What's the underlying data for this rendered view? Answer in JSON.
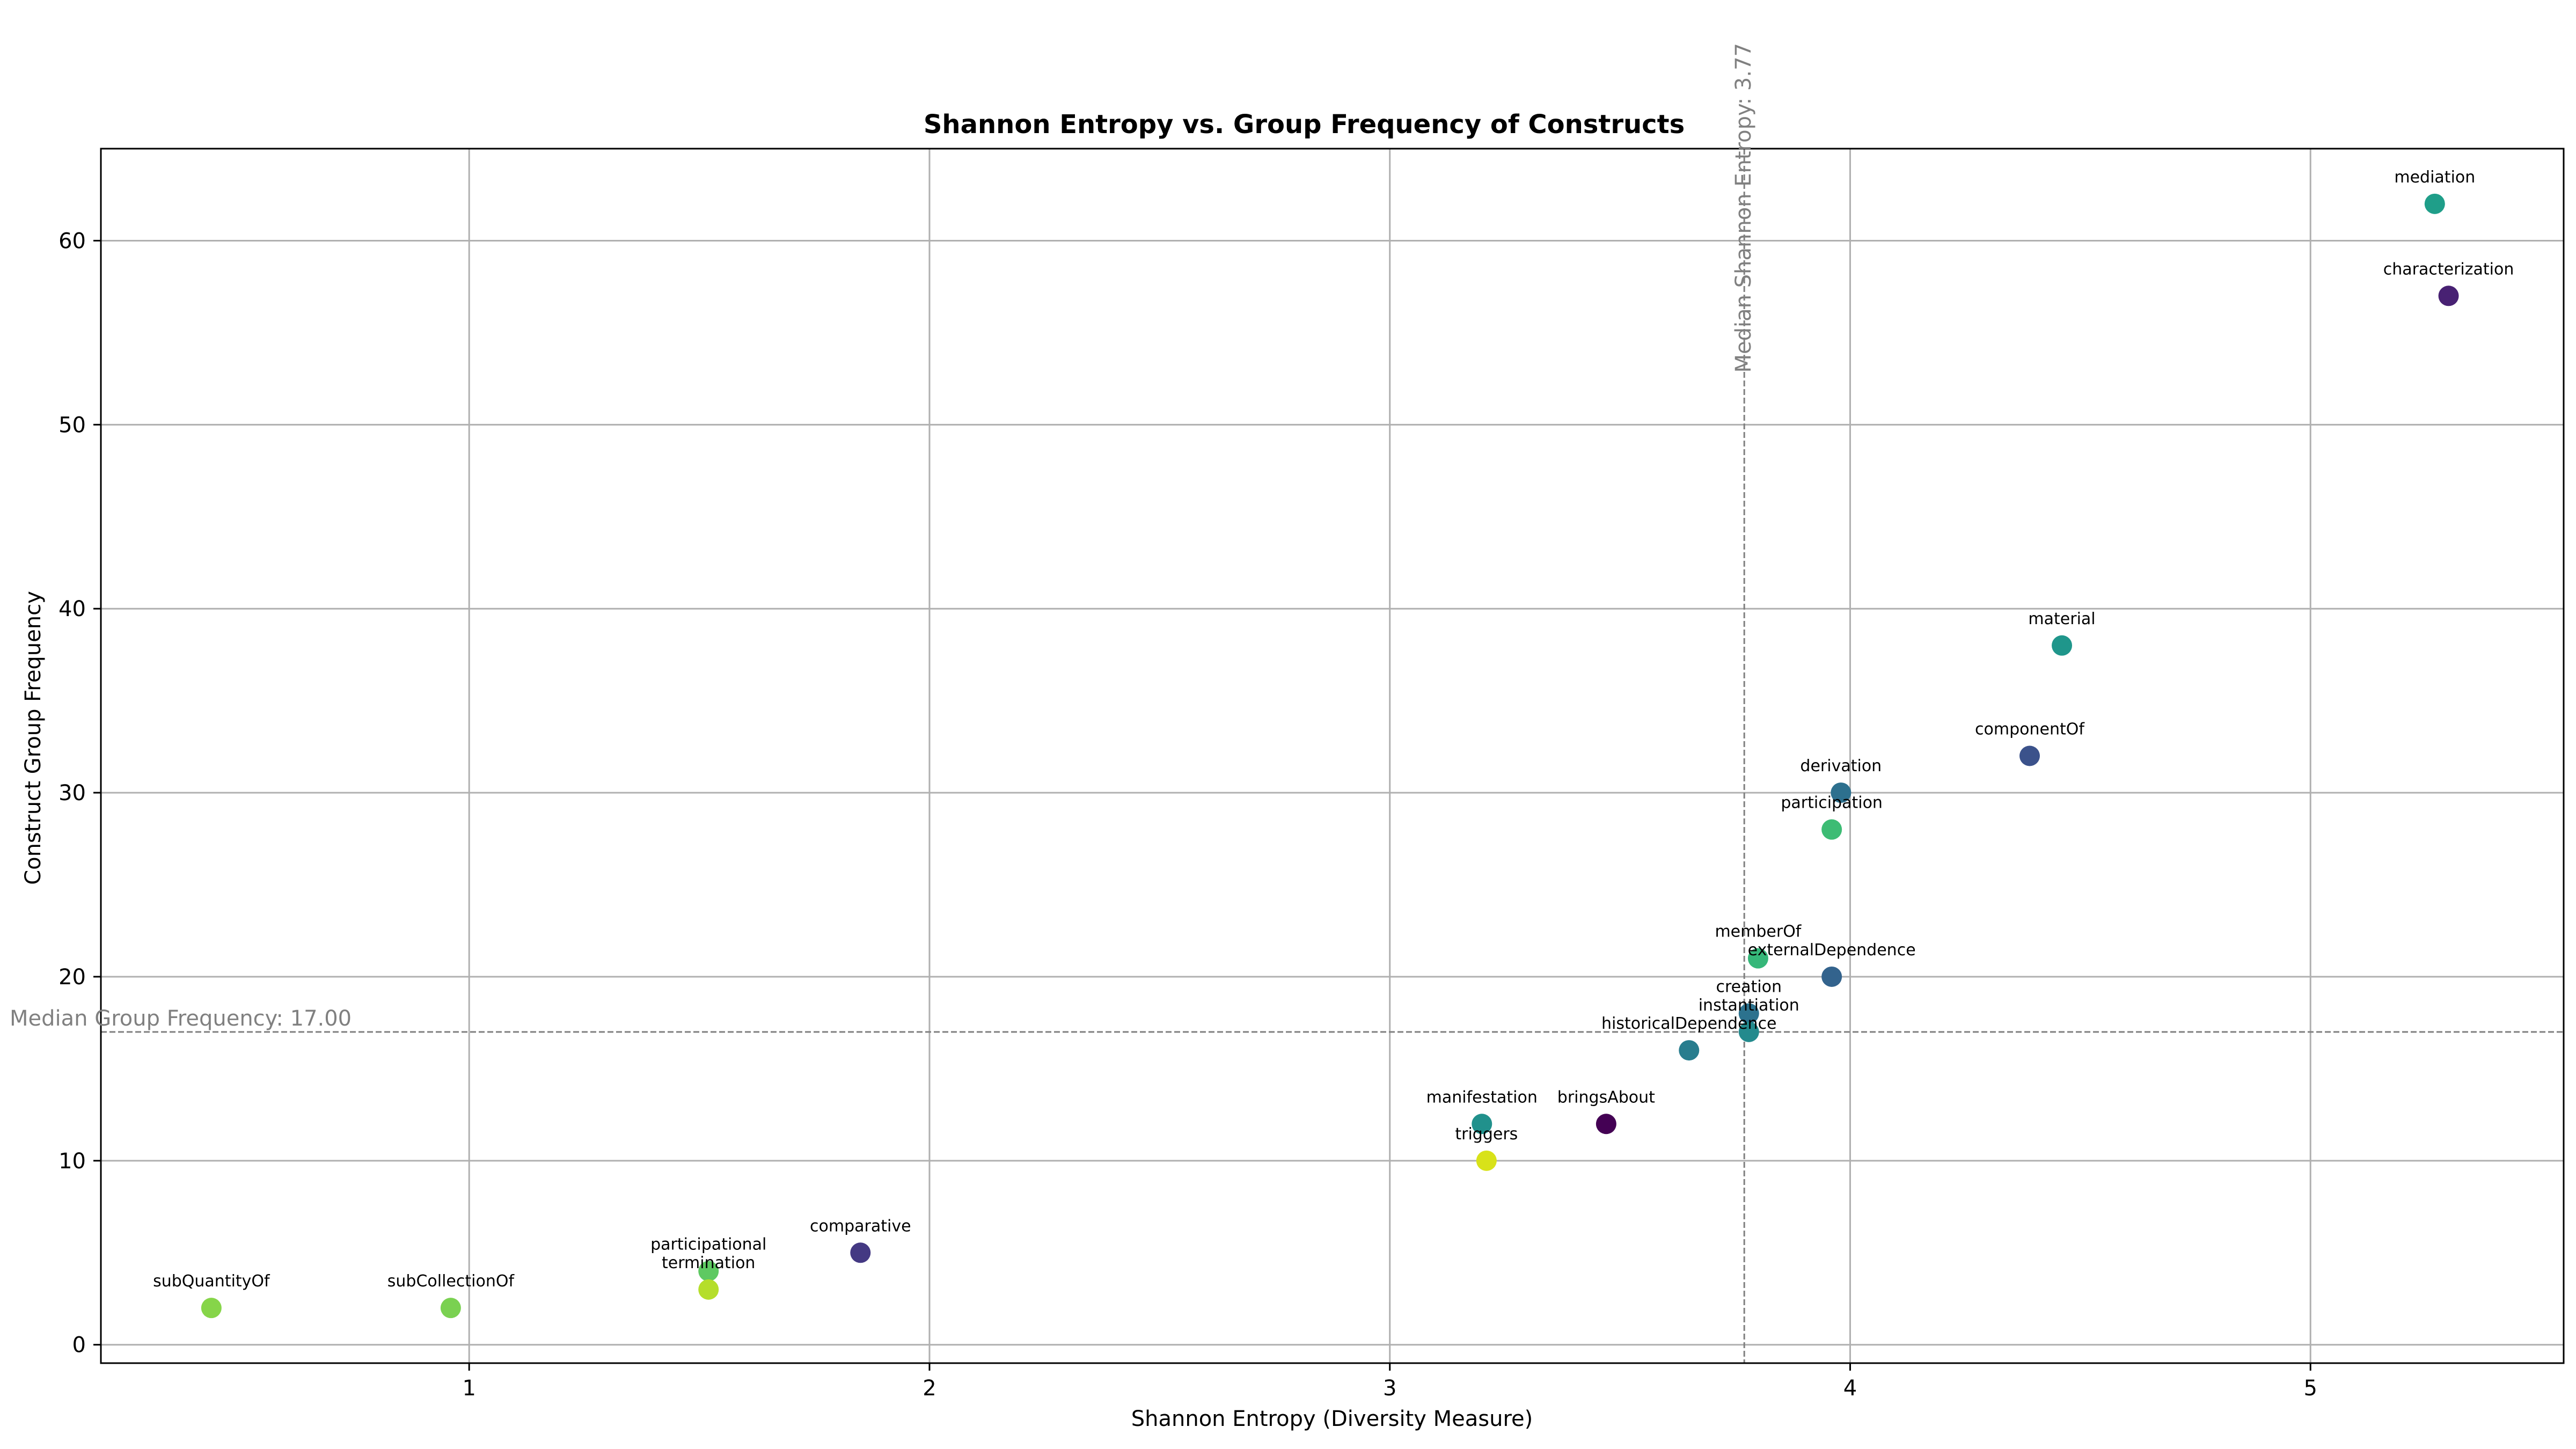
{
  "chart_data": {
    "type": "scatter",
    "title": "Shannon Entropy vs. Group Frequency of Constructs",
    "xlabel": "Shannon Entropy (Diversity Measure)",
    "ylabel": "Construct Group Frequency",
    "xlim": [
      0.2,
      5.55
    ],
    "ylim": [
      -1,
      65
    ],
    "xticks": [
      1,
      2,
      3,
      4,
      5
    ],
    "yticks": [
      0,
      10,
      20,
      30,
      40,
      50,
      60
    ],
    "grid": true,
    "median_entropy": 3.77,
    "median_frequency": 17.0,
    "median_entropy_label": "Median Shannon Entropy: 3.77",
    "median_frequency_label": "Median Group Frequency: 17.00",
    "points": [
      {
        "label": "mediation",
        "x": 5.27,
        "y": 62,
        "color": "#1f9e89"
      },
      {
        "label": "characterization",
        "x": 5.3,
        "y": 57,
        "color": "#482173"
      },
      {
        "label": "material",
        "x": 4.46,
        "y": 38,
        "color": "#1f968b"
      },
      {
        "label": "componentOf",
        "x": 4.39,
        "y": 32,
        "color": "#3b528b"
      },
      {
        "label": "derivation",
        "x": 3.98,
        "y": 30,
        "color": "#2d708e"
      },
      {
        "label": "participation",
        "x": 3.96,
        "y": 28,
        "color": "#3dbc74"
      },
      {
        "label": "memberOf",
        "x": 3.8,
        "y": 21,
        "color": "#35b779"
      },
      {
        "label": "externalDependence",
        "x": 3.96,
        "y": 20,
        "color": "#33638d"
      },
      {
        "label": "creation",
        "x": 3.78,
        "y": 18,
        "color": "#2c728e"
      },
      {
        "label": "instantiation",
        "x": 3.78,
        "y": 17,
        "color": "#238a8d"
      },
      {
        "label": "historicalDependence",
        "x": 3.65,
        "y": 16,
        "color": "#287d8e"
      },
      {
        "label": "manifestation",
        "x": 3.2,
        "y": 12,
        "color": "#21918c"
      },
      {
        "label": "bringsAbout",
        "x": 3.47,
        "y": 12,
        "color": "#440154"
      },
      {
        "label": "triggers",
        "x": 3.21,
        "y": 10,
        "color": "#d8e219"
      },
      {
        "label": "comparative",
        "x": 1.85,
        "y": 5,
        "color": "#443983"
      },
      {
        "label": "participational",
        "x": 1.52,
        "y": 4,
        "color": "#5ec962"
      },
      {
        "label": "termination",
        "x": 1.52,
        "y": 3,
        "color": "#b5de2b"
      },
      {
        "label": "subQuantityOf",
        "x": 0.44,
        "y": 2,
        "color": "#86d549"
      },
      {
        "label": "subCollectionOf",
        "x": 0.96,
        "y": 2,
        "color": "#7ad151"
      }
    ]
  }
}
